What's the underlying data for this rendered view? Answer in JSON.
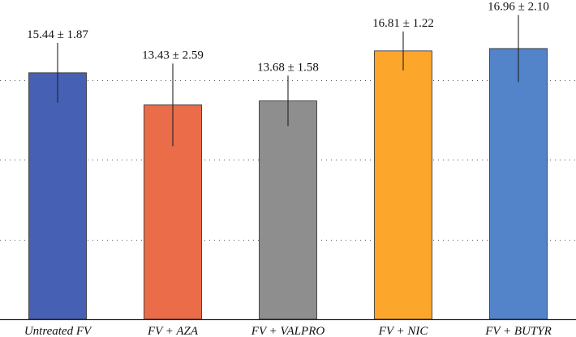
{
  "chart_data": {
    "type": "bar",
    "categories": [
      "Untreated FV",
      "FV + AZA",
      "FV + VALPRO",
      "FV + NIC",
      "FV + BUTYR"
    ],
    "values": [
      15.44,
      13.43,
      13.68,
      16.81,
      16.96
    ],
    "errors": [
      1.87,
      2.59,
      1.58,
      1.22,
      2.1
    ],
    "data_labels": [
      "15.44 ± 1.87",
      "13.43 ± 2.59",
      "13.68 ± 1.58",
      "16.81 ± 1.22",
      "16.96 ± 2.10"
    ],
    "colors": [
      "#4660b4",
      "#ea6c49",
      "#8e8e8e",
      "#fca72c",
      "#5383c8"
    ],
    "ylim": [
      0,
      20
    ],
    "yticks": [
      5,
      10,
      15
    ],
    "grid": true,
    "title": "",
    "xlabel": "",
    "ylabel": ""
  }
}
